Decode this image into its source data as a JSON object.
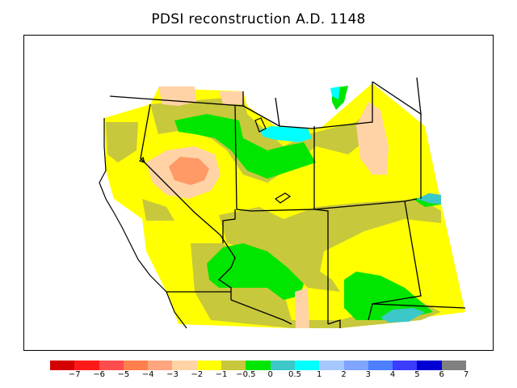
{
  "title": "PDSI reconstruction A.D. 1148",
  "legend": {
    "colors": [
      "#d40000",
      "#ff1a1a",
      "#ff4d4d",
      "#ff7f4d",
      "#ffa57f",
      "#ffd3a5",
      "#ffff00",
      "#c8c83c",
      "#00e600",
      "#3cc8c8",
      "#00ffff",
      "#a5c8ff",
      "#7fa5ff",
      "#4d7fff",
      "#3c3cff",
      "#0000d4",
      "#808080"
    ],
    "tick_labels": [
      "−7",
      "−6",
      "−5",
      "−4",
      "−3",
      "−2",
      "−1",
      "−0.5",
      "0",
      "0.5",
      "1",
      "2",
      "3",
      "4",
      "5",
      "6",
      "7"
    ]
  },
  "map": {
    "palette": {
      "orange": "#ff9966",
      "light_orange": "#ffd3a5",
      "yellow": "#ffff00",
      "olive": "#c8c83c",
      "green": "#00e600",
      "teal": "#3cc8c8",
      "cyan": "#00ffff",
      "outline": "#000000"
    }
  }
}
